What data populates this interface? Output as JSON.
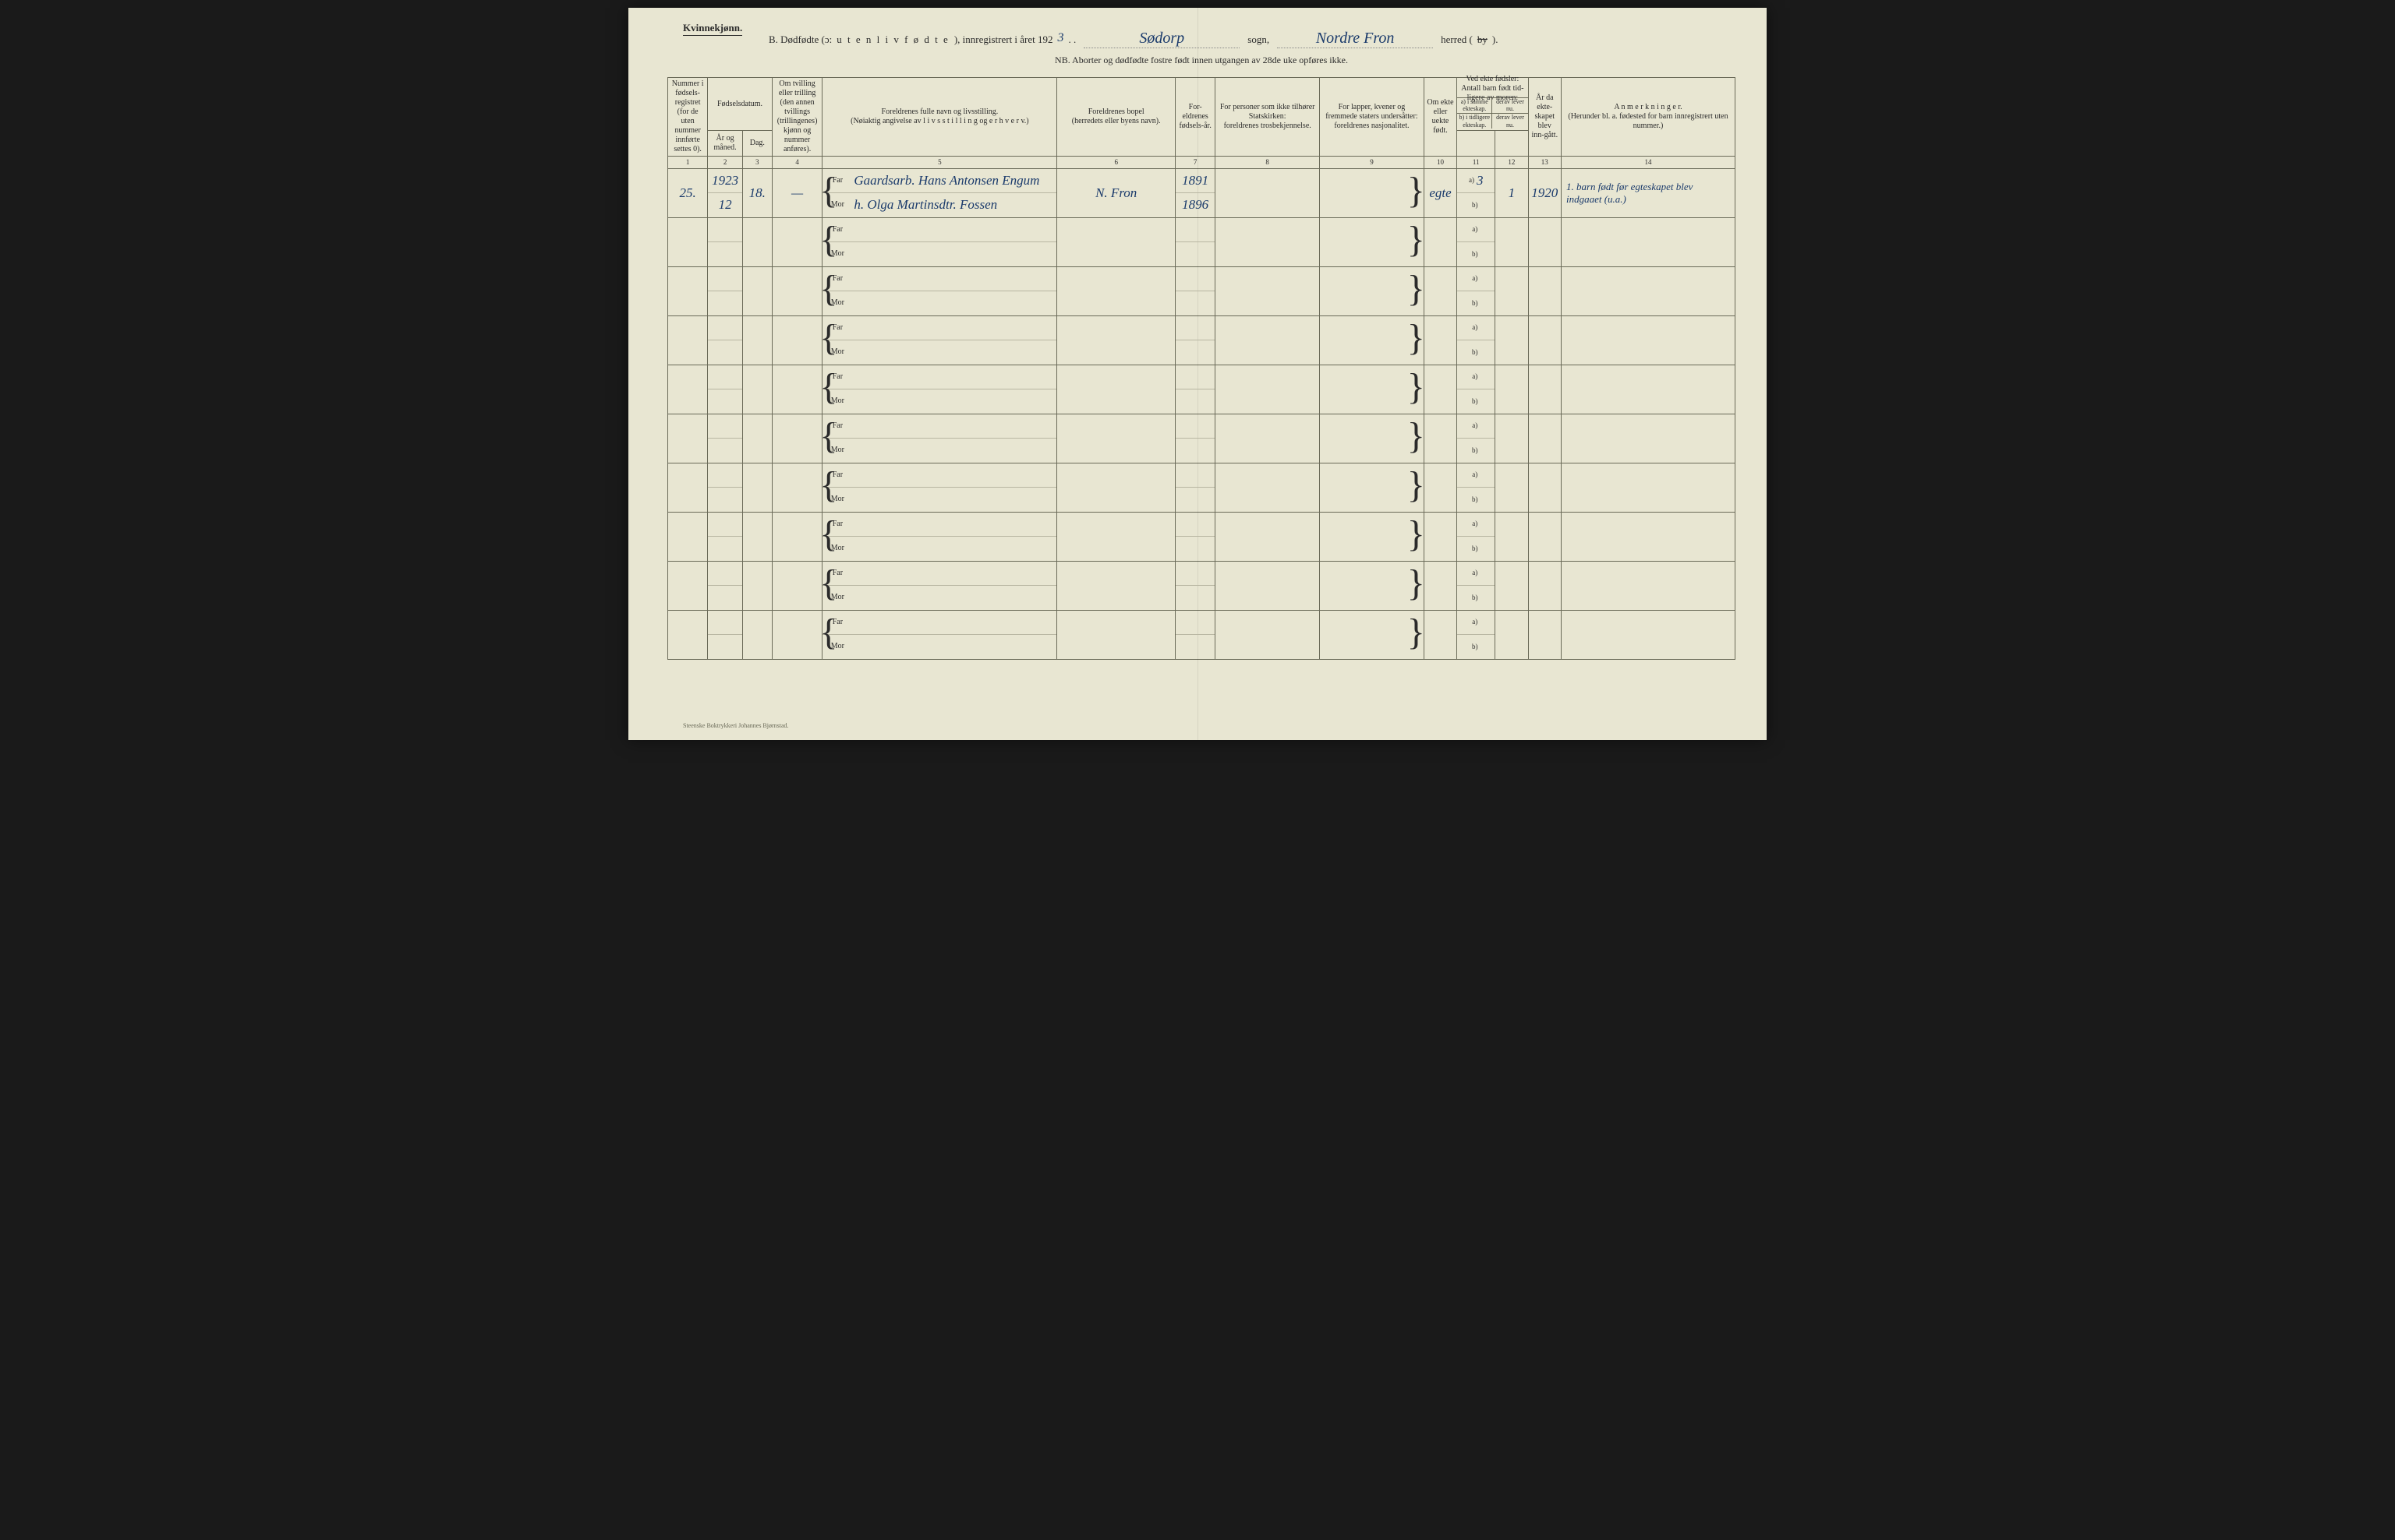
{
  "header": {
    "gender": "Kvinnekjønn.",
    "title_prefix": "B.   Dødfødte (ɔ:  ",
    "title_spaced": "u t e n   l i v   f ø d t e",
    "title_mid": "),  innregistrert i året 192",
    "year_digit": "3",
    "period": ". .",
    "sogn_value": "Sødorp",
    "sogn_label": "sogn,",
    "herred_value": "Nordre Fron",
    "herred_label_pre": "herred (",
    "herred_strike": "by",
    "herred_label_post": ").",
    "nb": "NB.  Aborter og dødfødte fostre født innen utgangen av 28de uke opføres ikke."
  },
  "columns": {
    "c1": "Nummer i fødsels-registret (for de uten nummer innførte settes 0).",
    "c2_top": "Fødselsdatum.",
    "c2a": "År og måned.",
    "c2b": "Dag.",
    "c4": "Om tvilling eller trilling (den annen tvillings (trillingenes) kjønn og nummer anføres).",
    "c5a": "Foreldrenes fulle navn og livsstilling.",
    "c5b": "(Nøiaktig angivelse av  l i v s s t i l l i n g  og  e r h v e r v.)",
    "c6a": "Foreldrenes bopel",
    "c6b": "(herredets eller byens navn).",
    "c7": "For-eldrenes fødsels-år.",
    "c8a": "For personer som ikke tilhører Statskirken:",
    "c8b": "foreldrenes trosbekjennelse.",
    "c9a": "For lapper, kvener og fremmede staters undersåtter:",
    "c9b": "foreldrenes nasjonalitet.",
    "c10": "Om ekte eller uekte født.",
    "c11_top": "Ved ekte fødsler: Antall barn født tid-ligere av moren:",
    "c11_a": "a) i samme ekteskap.",
    "c11_b": "derav lever nu.",
    "c11_c": "b) i tidligere ekteskap.",
    "c11_d": "derav lever nu.",
    "c13": "År da ekte-skapet blev inn-gått.",
    "c14a": "A n m e r k n i n g e r.",
    "c14b": "(Herunder bl. a. fødested for barn innregistrert uten nummer.)"
  },
  "colnums": [
    "1",
    "2",
    "3",
    "4",
    "5",
    "6",
    "7",
    "8",
    "9",
    "10",
    "11",
    "12",
    "13",
    "14"
  ],
  "rows": [
    {
      "num": "25.",
      "year": "1923",
      "month": "12",
      "day": "18.",
      "twin": "—",
      "far": "Gaardsarb. Hans Antonsen Engum",
      "mor": "h. Olga Martinsdtr. Fossen",
      "bopel": "N. Fron",
      "far_year": "1891",
      "mor_year": "1896",
      "ekte": "egte",
      "c11a": "3",
      "c12": "1",
      "c13": "1920",
      "anm": "1. barn født før egteskapet blev indgaaet (u.a.)"
    },
    {},
    {},
    {},
    {},
    {},
    {},
    {},
    {},
    {}
  ],
  "parent_labels": {
    "far": "Far",
    "mor": "Mor"
  },
  "ab_labels": {
    "a": "a)",
    "b": "b)"
  },
  "footer": "Steenske Boktrykkeri Johannes Bjørnstad."
}
